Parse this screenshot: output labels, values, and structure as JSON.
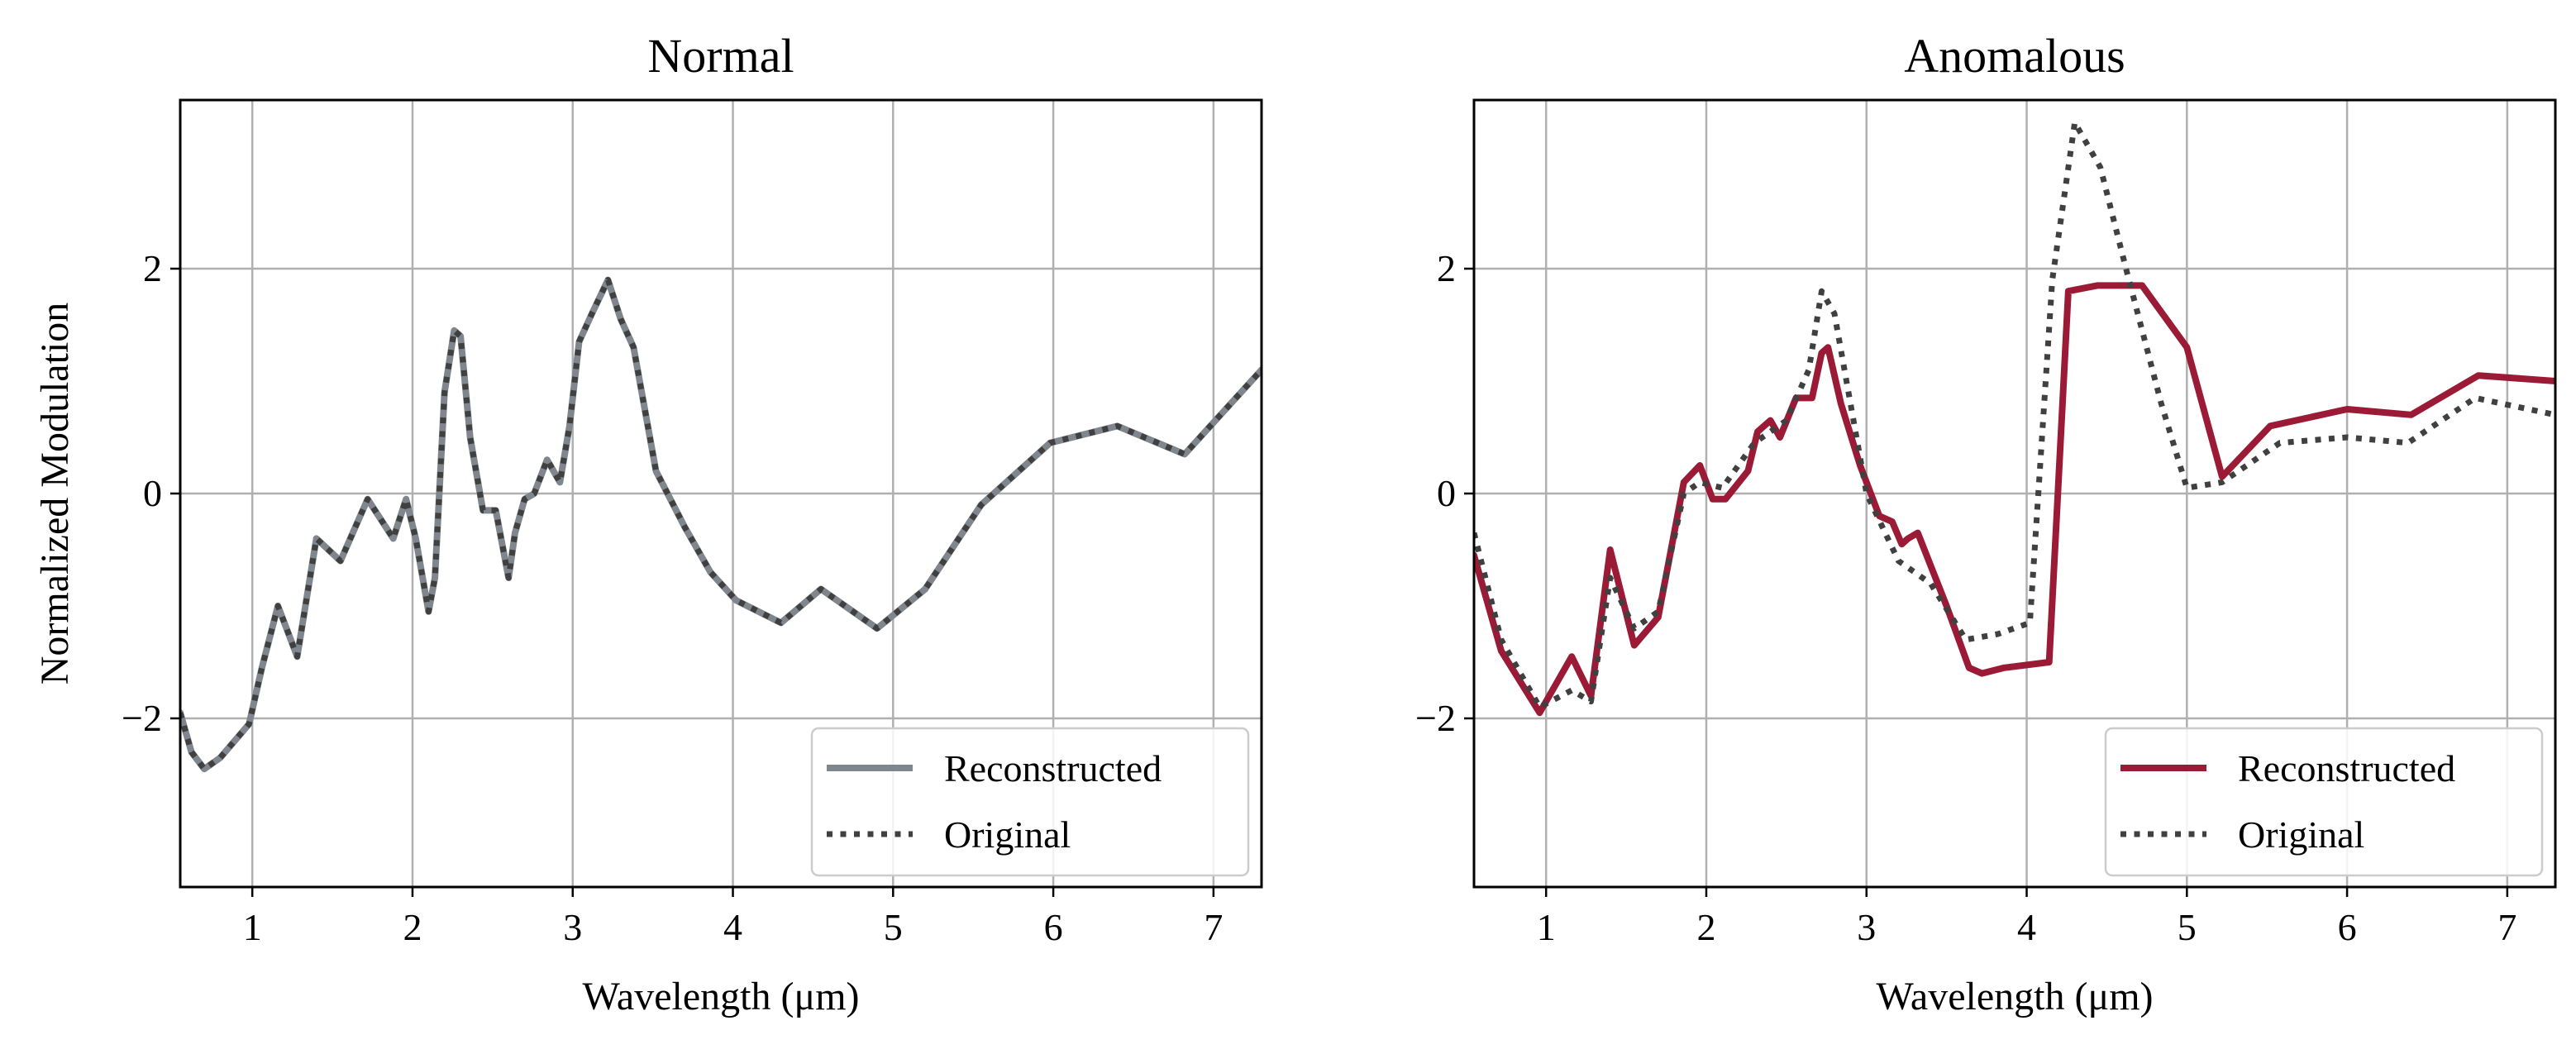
{
  "chart_data": [
    {
      "type": "line",
      "title": "Normal",
      "xlabel": "Wavelength (μm)",
      "ylabel": "Normalized Modulation",
      "xlim": [
        0.55,
        7.3
      ],
      "ylim": [
        -3.5,
        3.5
      ],
      "xticks": [
        1,
        2,
        3,
        4,
        5,
        6,
        7
      ],
      "yticks": [
        -2,
        0,
        2
      ],
      "ytick_labels": [
        "−2",
        "0",
        "2"
      ],
      "grid": true,
      "legend": "lower-right",
      "series": [
        {
          "name": "Reconstructed",
          "color": "#7f868d",
          "style": "solid",
          "x": [
            0.55,
            0.62,
            0.7,
            0.8,
            0.98,
            1.06,
            1.16,
            1.28,
            1.4,
            1.55,
            1.72,
            1.88,
            1.96,
            2.02,
            2.1,
            2.14,
            2.2,
            2.26,
            2.3,
            2.36,
            2.44,
            2.52,
            2.6,
            2.64,
            2.7,
            2.76,
            2.84,
            2.92,
            2.98,
            3.04,
            3.12,
            3.22,
            3.3,
            3.38,
            3.52,
            3.7,
            3.86,
            4.02,
            4.3,
            4.55,
            4.9,
            5.2,
            5.55,
            5.98,
            6.4,
            6.82,
            7.3
          ],
          "y": [
            -1.95,
            -2.3,
            -2.45,
            -2.35,
            -2.05,
            -1.55,
            -1.0,
            -1.45,
            -0.4,
            -0.6,
            -0.05,
            -0.4,
            -0.05,
            -0.4,
            -1.05,
            -0.75,
            0.9,
            1.45,
            1.4,
            0.5,
            -0.15,
            -0.15,
            -0.75,
            -0.35,
            -0.05,
            0.0,
            0.3,
            0.1,
            0.6,
            1.35,
            1.6,
            1.9,
            1.55,
            1.3,
            0.2,
            -0.3,
            -0.7,
            -0.95,
            -1.15,
            -0.85,
            -1.2,
            -0.85,
            -0.1,
            0.45,
            0.6,
            0.35,
            1.1
          ]
        },
        {
          "name": "Original",
          "color": "#404040",
          "style": "dotted",
          "x": [
            0.55,
            0.62,
            0.7,
            0.8,
            0.98,
            1.06,
            1.16,
            1.28,
            1.4,
            1.55,
            1.72,
            1.88,
            1.96,
            2.02,
            2.1,
            2.14,
            2.2,
            2.26,
            2.3,
            2.36,
            2.44,
            2.52,
            2.6,
            2.64,
            2.7,
            2.76,
            2.84,
            2.92,
            2.98,
            3.04,
            3.12,
            3.22,
            3.3,
            3.38,
            3.52,
            3.7,
            3.86,
            4.02,
            4.3,
            4.55,
            4.9,
            5.2,
            5.55,
            5.98,
            6.4,
            6.82,
            7.3
          ],
          "y": [
            -1.95,
            -2.3,
            -2.45,
            -2.35,
            -2.05,
            -1.55,
            -1.0,
            -1.45,
            -0.4,
            -0.6,
            -0.05,
            -0.4,
            -0.05,
            -0.4,
            -1.05,
            -0.75,
            0.9,
            1.45,
            1.4,
            0.5,
            -0.15,
            -0.15,
            -0.75,
            -0.35,
            -0.05,
            0.0,
            0.3,
            0.1,
            0.6,
            1.35,
            1.6,
            1.9,
            1.55,
            1.3,
            0.2,
            -0.3,
            -0.7,
            -0.95,
            -1.15,
            -0.85,
            -1.2,
            -0.85,
            -0.1,
            0.45,
            0.6,
            0.35,
            1.1
          ]
        }
      ]
    },
    {
      "type": "line",
      "title": "Anomalous",
      "xlabel": "Wavelength (μm)",
      "ylabel": "",
      "xlim": [
        0.55,
        7.3
      ],
      "ylim": [
        -3.5,
        3.5
      ],
      "xticks": [
        1,
        2,
        3,
        4,
        5,
        6,
        7
      ],
      "yticks": [
        -2,
        0,
        2
      ],
      "ytick_labels": [
        "−2",
        "0",
        "2"
      ],
      "grid": true,
      "legend": "lower-right",
      "series": [
        {
          "name": "Reconstructed",
          "color": "#9b1b36",
          "style": "solid",
          "x": [
            0.55,
            0.72,
            0.96,
            1.16,
            1.28,
            1.4,
            1.55,
            1.7,
            1.86,
            1.96,
            2.04,
            2.12,
            2.26,
            2.32,
            2.4,
            2.46,
            2.56,
            2.66,
            2.72,
            2.76,
            2.84,
            2.96,
            3.08,
            3.16,
            3.22,
            3.26,
            3.32,
            3.5,
            3.64,
            3.72,
            3.86,
            4.14,
            4.26,
            4.44,
            4.72,
            5.0,
            5.22,
            5.52,
            6.0,
            6.4,
            6.82,
            7.3
          ],
          "y": [
            -0.55,
            -1.4,
            -1.95,
            -1.45,
            -1.8,
            -0.5,
            -1.35,
            -1.1,
            0.1,
            0.25,
            -0.05,
            -0.05,
            0.2,
            0.55,
            0.65,
            0.5,
            0.85,
            0.85,
            1.25,
            1.3,
            0.8,
            0.25,
            -0.2,
            -0.25,
            -0.45,
            -0.4,
            -0.35,
            -1.0,
            -1.55,
            -1.6,
            -1.55,
            -1.5,
            1.8,
            1.85,
            1.85,
            1.3,
            0.15,
            0.6,
            0.75,
            0.7,
            1.05,
            1.0
          ]
        },
        {
          "name": "Original",
          "color": "#404040",
          "style": "dotted",
          "x": [
            0.55,
            0.72,
            0.96,
            1.16,
            1.28,
            1.4,
            1.55,
            1.7,
            1.86,
            1.96,
            2.1,
            2.3,
            2.5,
            2.64,
            2.72,
            2.8,
            2.9,
            3.0,
            3.2,
            3.4,
            3.62,
            3.82,
            4.02,
            4.16,
            4.3,
            4.46,
            4.62,
            4.84,
            5.0,
            5.22,
            5.58,
            6.0,
            6.38,
            6.8,
            7.3
          ],
          "y": [
            -0.35,
            -1.3,
            -1.9,
            -1.75,
            -1.85,
            -0.75,
            -1.2,
            -1.05,
            0.0,
            0.1,
            0.05,
            0.45,
            0.65,
            1.1,
            1.8,
            1.6,
            0.8,
            0.0,
            -0.6,
            -0.8,
            -1.3,
            -1.25,
            -1.15,
            1.9,
            3.3,
            2.9,
            2.0,
            0.8,
            0.05,
            0.1,
            0.45,
            0.5,
            0.45,
            0.85,
            0.7
          ]
        }
      ]
    }
  ]
}
